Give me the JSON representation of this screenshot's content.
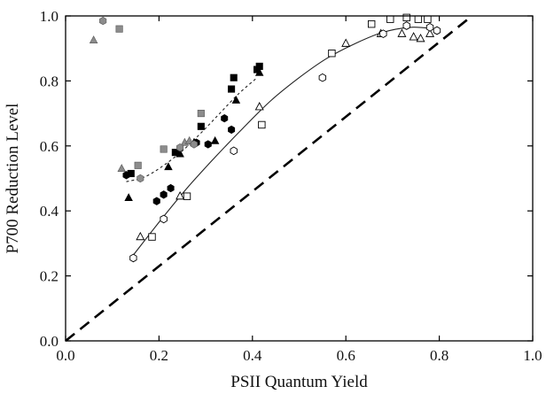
{
  "chart_data": {
    "type": "scatter",
    "title": "",
    "xlabel": "PSII Quantum Yield",
    "ylabel": "P700 Reduction Level",
    "xlim": [
      0.0,
      1.0
    ],
    "ylim": [
      0.0,
      1.0
    ],
    "x_ticks": [
      "0.0",
      "0.2",
      "0.4",
      "0.6",
      "0.8",
      "1.0"
    ],
    "y_ticks": [
      "0.0",
      "0.2",
      "0.4",
      "0.6",
      "0.8",
      "1.0"
    ],
    "grid": false,
    "legend": "none",
    "series": [
      {
        "marker": "square",
        "fill": "#000000",
        "points": [
          [
            0.14,
            0.515
          ],
          [
            0.235,
            0.58
          ],
          [
            0.29,
            0.66
          ],
          [
            0.355,
            0.775
          ],
          [
            0.36,
            0.81
          ],
          [
            0.41,
            0.835
          ],
          [
            0.415,
            0.845
          ]
        ]
      },
      {
        "marker": "triangle",
        "fill": "#000000",
        "points": [
          [
            0.135,
            0.44
          ],
          [
            0.22,
            0.535
          ],
          [
            0.245,
            0.575
          ],
          [
            0.275,
            0.61
          ],
          [
            0.32,
            0.615
          ],
          [
            0.365,
            0.74
          ],
          [
            0.415,
            0.825
          ]
        ]
      },
      {
        "marker": "hexagon",
        "fill": "#000000",
        "points": [
          [
            0.13,
            0.51
          ],
          [
            0.195,
            0.43
          ],
          [
            0.21,
            0.45
          ],
          [
            0.225,
            0.47
          ],
          [
            0.28,
            0.61
          ],
          [
            0.305,
            0.605
          ],
          [
            0.34,
            0.685
          ],
          [
            0.355,
            0.65
          ]
        ]
      },
      {
        "marker": "square",
        "fill": "#8c8c8c",
        "points": [
          [
            0.115,
            0.96
          ],
          [
            0.155,
            0.54
          ],
          [
            0.21,
            0.59
          ],
          [
            0.29,
            0.7
          ]
        ]
      },
      {
        "marker": "triangle",
        "fill": "#8c8c8c",
        "points": [
          [
            0.06,
            0.925
          ],
          [
            0.12,
            0.53
          ],
          [
            0.255,
            0.61
          ],
          [
            0.265,
            0.615
          ]
        ]
      },
      {
        "marker": "hexagon",
        "fill": "#8c8c8c",
        "points": [
          [
            0.08,
            0.985
          ],
          [
            0.16,
            0.5
          ],
          [
            0.245,
            0.595
          ],
          [
            0.275,
            0.605
          ]
        ]
      },
      {
        "marker": "square",
        "fill": "#ffffff",
        "points": [
          [
            0.185,
            0.32
          ],
          [
            0.26,
            0.445
          ],
          [
            0.42,
            0.665
          ],
          [
            0.57,
            0.885
          ],
          [
            0.655,
            0.975
          ],
          [
            0.695,
            0.99
          ],
          [
            0.73,
            0.995
          ],
          [
            0.755,
            0.99
          ],
          [
            0.775,
            0.99
          ]
        ]
      },
      {
        "marker": "triangle",
        "fill": "#ffffff",
        "points": [
          [
            0.16,
            0.32
          ],
          [
            0.245,
            0.445
          ],
          [
            0.415,
            0.72
          ],
          [
            0.6,
            0.915
          ],
          [
            0.675,
            0.945
          ],
          [
            0.72,
            0.945
          ],
          [
            0.745,
            0.935
          ],
          [
            0.76,
            0.93
          ],
          [
            0.78,
            0.945
          ]
        ]
      },
      {
        "marker": "hexagon",
        "fill": "#ffffff",
        "points": [
          [
            0.145,
            0.255
          ],
          [
            0.21,
            0.375
          ],
          [
            0.36,
            0.585
          ],
          [
            0.55,
            0.81
          ],
          [
            0.68,
            0.945
          ],
          [
            0.73,
            0.97
          ],
          [
            0.78,
            0.965
          ],
          [
            0.795,
            0.955
          ]
        ]
      }
    ],
    "fit_curves": [
      {
        "style": "dashed-fine",
        "points": [
          [
            0.13,
            0.49
          ],
          [
            0.17,
            0.505
          ],
          [
            0.21,
            0.54
          ],
          [
            0.25,
            0.585
          ],
          [
            0.29,
            0.64
          ],
          [
            0.33,
            0.7
          ],
          [
            0.37,
            0.76
          ],
          [
            0.41,
            0.81
          ]
        ]
      },
      {
        "style": "solid-thin",
        "points": [
          [
            0.14,
            0.255
          ],
          [
            0.2,
            0.365
          ],
          [
            0.26,
            0.47
          ],
          [
            0.32,
            0.565
          ],
          [
            0.38,
            0.655
          ],
          [
            0.44,
            0.74
          ],
          [
            0.5,
            0.81
          ],
          [
            0.56,
            0.87
          ],
          [
            0.62,
            0.915
          ],
          [
            0.68,
            0.95
          ],
          [
            0.74,
            0.965
          ],
          [
            0.79,
            0.96
          ]
        ]
      }
    ],
    "reference_line": {
      "style": "dashed-bold",
      "points": [
        [
          0.0,
          0.0
        ],
        [
          0.87,
          1.0
        ]
      ]
    }
  }
}
